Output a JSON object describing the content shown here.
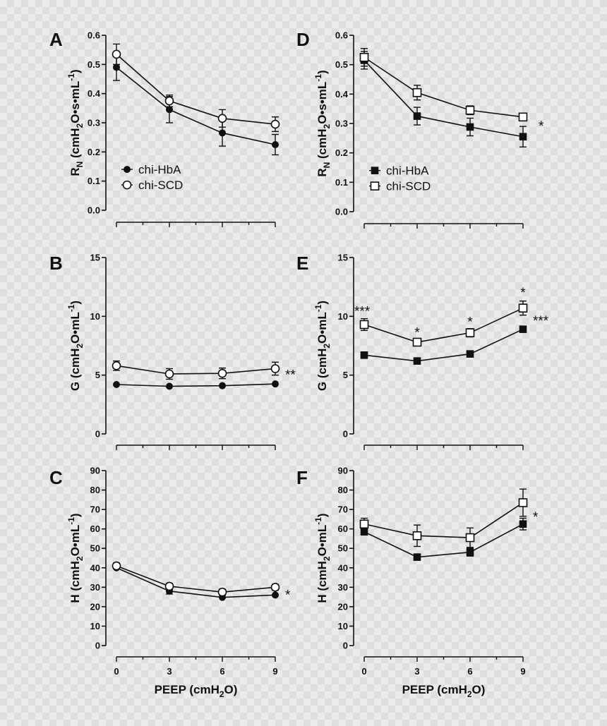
{
  "chart_data": [
    {
      "type": "line",
      "letter": "A",
      "ylabel": "RN (cmH2O·s·mL-1)",
      "ylim": [
        0,
        0.6
      ],
      "yticks": [
        "0.0",
        "0.1",
        "0.2",
        "0.3",
        "0.4",
        "0.5",
        "0.6"
      ],
      "x": [
        0,
        3,
        6,
        9
      ],
      "xticks": [],
      "xlabel": "",
      "legend": "left-lower",
      "series": [
        {
          "name": "chi-HbA",
          "marker": "filled-circle",
          "values": [
            0.49,
            0.345,
            0.265,
            0.225
          ],
          "errors": [
            0.045,
            0.045,
            0.045,
            0.035
          ]
        },
        {
          "name": "chi-SCD",
          "marker": "open-circle",
          "values": [
            0.535,
            0.375,
            0.315,
            0.295
          ],
          "errors": [
            0.035,
            0.02,
            0.03,
            0.025
          ]
        }
      ],
      "annotations": []
    },
    {
      "type": "line",
      "letter": "B",
      "ylabel": "G (cmH2O·mL-1)",
      "ylim": [
        0,
        15
      ],
      "yticks": [
        "0",
        "5",
        "10",
        "15"
      ],
      "x": [
        0,
        3,
        6,
        9
      ],
      "xticks": [],
      "xlabel": "",
      "series": [
        {
          "name": "chi-HbA",
          "marker": "filled-circle",
          "values": [
            4.2,
            4.05,
            4.1,
            4.25
          ],
          "errors": [
            0,
            0,
            0,
            0
          ]
        },
        {
          "name": "chi-SCD",
          "marker": "open-circle",
          "values": [
            5.8,
            5.1,
            5.15,
            5.55
          ],
          "errors": [
            0.4,
            0.45,
            0.45,
            0.55
          ]
        }
      ],
      "annotations": [
        {
          "text": "**",
          "x": 9,
          "y": 5.0
        }
      ]
    },
    {
      "type": "line",
      "letter": "C",
      "ylabel": "H (cmH2O·mL-1)",
      "ylim": [
        0,
        90
      ],
      "yticks": [
        "0",
        "10",
        "20",
        "30",
        "40",
        "50",
        "60",
        "70",
        "80",
        "90"
      ],
      "x": [
        0,
        3,
        6,
        9
      ],
      "xticks": [
        "0",
        "3",
        "6",
        "9"
      ],
      "xlabel": "PEEP (cmH2O)",
      "series": [
        {
          "name": "chi-HbA",
          "marker": "filled-circle",
          "values": [
            40.0,
            28.0,
            24.8,
            26.0
          ],
          "errors": [
            0,
            1.5,
            0,
            0
          ]
        },
        {
          "name": "chi-SCD",
          "marker": "open-circle",
          "values": [
            41.0,
            30.5,
            27.5,
            30.0
          ],
          "errors": [
            1.5,
            1.5,
            1.5,
            1.5
          ]
        }
      ],
      "annotations": [
        {
          "text": "*",
          "x": 9,
          "y": 26.0
        }
      ]
    },
    {
      "type": "line",
      "letter": "D",
      "ylabel": "RN (cmH2O·s·mL-1)",
      "ylim": [
        0,
        0.6
      ],
      "yticks": [
        "0.0",
        "0.1",
        "0.2",
        "0.3",
        "0.4",
        "0.5",
        "0.6"
      ],
      "x": [
        0,
        3,
        6,
        9
      ],
      "xticks": [],
      "xlabel": "",
      "legend": "left-lower",
      "series": [
        {
          "name": "chi-HbA",
          "marker": "filled-square",
          "values": [
            0.515,
            0.325,
            0.288,
            0.255
          ],
          "errors": [
            0.03,
            0.03,
            0.03,
            0.035
          ]
        },
        {
          "name": "chi-SCD",
          "marker": "open-square",
          "values": [
            0.525,
            0.405,
            0.345,
            0.322
          ],
          "errors": [
            0.03,
            0.025,
            0.015,
            0.012
          ]
        }
      ],
      "annotations": [
        {
          "text": "*",
          "x": 9,
          "y": 0.29
        }
      ]
    },
    {
      "type": "line",
      "letter": "E",
      "ylabel": "G (cmH2O·mL-1)",
      "ylim": [
        0,
        15
      ],
      "yticks": [
        "0",
        "5",
        "10",
        "15"
      ],
      "x": [
        0,
        3,
        6,
        9
      ],
      "xticks": [],
      "xlabel": "",
      "series": [
        {
          "name": "chi-HbA",
          "marker": "filled-square",
          "values": [
            6.7,
            6.2,
            6.8,
            8.9
          ],
          "errors": [
            0,
            0,
            0,
            0
          ]
        },
        {
          "name": "chi-SCD",
          "marker": "open-square",
          "values": [
            9.3,
            7.8,
            8.6,
            10.7
          ],
          "errors": [
            0.5,
            0.3,
            0.35,
            0.6
          ]
        }
      ],
      "annotations": [
        {
          "text": "***",
          "x": 0,
          "y": 10.4
        },
        {
          "text": "*",
          "x": 3,
          "y": 8.6
        },
        {
          "text": "*",
          "x": 6,
          "y": 9.5
        },
        {
          "text": "*",
          "x": 9,
          "y": 12.0
        },
        {
          "text": "***",
          "x": 9,
          "y": 9.6
        }
      ]
    },
    {
      "type": "line",
      "letter": "F",
      "ylabel": "H (cmH2O·mL-1)",
      "ylim": [
        0,
        90
      ],
      "yticks": [
        "0",
        "10",
        "20",
        "30",
        "40",
        "50",
        "60",
        "70",
        "80",
        "90"
      ],
      "x": [
        0,
        3,
        6,
        9
      ],
      "xticks": [
        "0",
        "3",
        "6",
        "9"
      ],
      "xlabel": "PEEP (cmH2O)",
      "series": [
        {
          "name": "chi-HbA",
          "marker": "filled-square",
          "values": [
            58.5,
            45.5,
            48.0,
            62.5
          ],
          "errors": [
            1.5,
            1.5,
            2,
            3
          ]
        },
        {
          "name": "chi-SCD",
          "marker": "open-square",
          "values": [
            62.5,
            56.5,
            55.5,
            73.5
          ],
          "errors": [
            3,
            5.5,
            5,
            7
          ]
        }
      ],
      "annotations": [
        {
          "text": "*",
          "x": 9,
          "y": 66.0
        }
      ]
    }
  ]
}
